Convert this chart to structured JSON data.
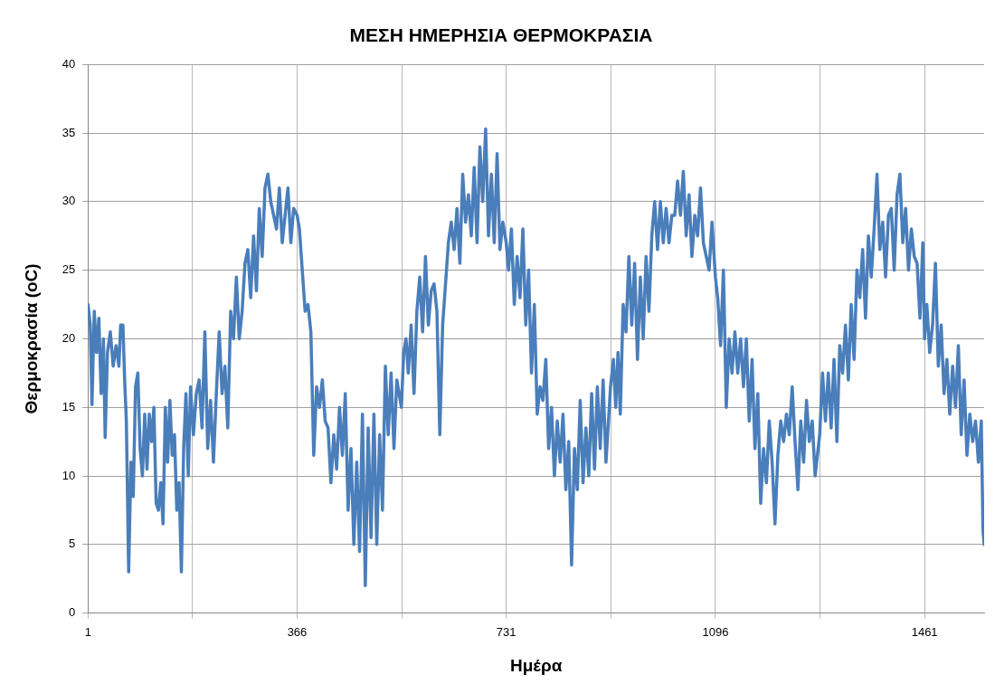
{
  "chart_data": {
    "type": "line",
    "title": "ΜΕΣΗ ΗΜΕΡΗΣΙΑ ΘΕΡΜΟΚΡΑΣΙΑ",
    "xlabel": "Ημέρα",
    "ylabel": "Θερμοκρασία (oC)",
    "xlim": [
      1,
      1565
    ],
    "ylim": [
      0,
      40
    ],
    "xticks": [
      1,
      {
        "value": 183.5,
        "label": null
      },
      366,
      {
        "value": 548.5,
        "label": null
      },
      731,
      {
        "value": 913.5,
        "label": null
      },
      1096,
      {
        "value": 1278.5,
        "label": null
      },
      1461
    ],
    "yticks": [
      0,
      5,
      10,
      15,
      20,
      25,
      30,
      35,
      40
    ],
    "grid": true,
    "legend": false,
    "marker": "none",
    "line_style": "solid",
    "series": [
      {
        "color": "#4a7ebb",
        "x": [
          1,
          5,
          8,
          12,
          16,
          20,
          24,
          28,
          31,
          35,
          40,
          45,
          50,
          55,
          58,
          62,
          65,
          68,
          72,
          76,
          80,
          84,
          88,
          92,
          96,
          100,
          104,
          108,
          112,
          116,
          120,
          124,
          128,
          132,
          136,
          140,
          144,
          148,
          152,
          156,
          160,
          164,
          168,
          172,
          176,
          180,
          185,
          190,
          195,
          200,
          205,
          210,
          215,
          220,
          225,
          230,
          235,
          240,
          245,
          250,
          255,
          260,
          265,
          270,
          275,
          280,
          285,
          290,
          295,
          300,
          305,
          310,
          315,
          320,
          325,
          330,
          335,
          340,
          345,
          350,
          355,
          360,
          366,
          370,
          375,
          380,
          385,
          390,
          395,
          400,
          405,
          410,
          415,
          420,
          425,
          430,
          435,
          440,
          445,
          450,
          455,
          460,
          465,
          470,
          475,
          480,
          485,
          490,
          495,
          500,
          505,
          510,
          515,
          520,
          525,
          530,
          535,
          540,
          548,
          552,
          556,
          560,
          565,
          570,
          575,
          580,
          585,
          590,
          595,
          600,
          605,
          610,
          615,
          620,
          625,
          630,
          635,
          640,
          645,
          650,
          655,
          660,
          665,
          670,
          675,
          680,
          685,
          690,
          695,
          700,
          705,
          710,
          715,
          720,
          725,
          731,
          735,
          740,
          745,
          750,
          755,
          760,
          765,
          770,
          775,
          780,
          785,
          790,
          795,
          800,
          805,
          810,
          815,
          820,
          825,
          830,
          835,
          840,
          845,
          850,
          855,
          860,
          865,
          870,
          875,
          880,
          885,
          890,
          895,
          900,
          905,
          913,
          918,
          922,
          926,
          930,
          935,
          940,
          945,
          950,
          955,
          960,
          965,
          970,
          975,
          980,
          985,
          990,
          995,
          1000,
          1005,
          1010,
          1015,
          1020,
          1025,
          1030,
          1035,
          1040,
          1045,
          1050,
          1055,
          1060,
          1065,
          1070,
          1075,
          1080,
          1085,
          1090,
          1096,
          1100,
          1105,
          1110,
          1115,
          1120,
          1125,
          1130,
          1135,
          1140,
          1145,
          1150,
          1155,
          1160,
          1165,
          1170,
          1175,
          1180,
          1185,
          1190,
          1195,
          1200,
          1205,
          1210,
          1215,
          1220,
          1225,
          1230,
          1235,
          1240,
          1245,
          1250,
          1255,
          1260,
          1265,
          1270,
          1278,
          1283,
          1288,
          1293,
          1298,
          1303,
          1308,
          1313,
          1318,
          1323,
          1328,
          1333,
          1338,
          1343,
          1348,
          1353,
          1358,
          1363,
          1368,
          1373,
          1378,
          1383,
          1388,
          1393,
          1398,
          1403,
          1408,
          1413,
          1418,
          1423,
          1428,
          1433,
          1438,
          1443,
          1448,
          1453,
          1458,
          1461,
          1465,
          1470,
          1475,
          1480,
          1485,
          1490,
          1495,
          1500,
          1505,
          1510,
          1515,
          1520,
          1525,
          1530,
          1535,
          1540,
          1545,
          1550,
          1555,
          1560,
          1563,
          1565
        ],
        "values": [
          22.5,
          21,
          15.2,
          22,
          19,
          21.5,
          16,
          20,
          12.8,
          19,
          20.5,
          18,
          19.5,
          18,
          21,
          21,
          17,
          14,
          3,
          11,
          8.5,
          16.5,
          17.5,
          12,
          10,
          14.5,
          10.5,
          14.5,
          12.5,
          15,
          8,
          7.5,
          9.5,
          6.5,
          15,
          11,
          15.5,
          11.5,
          13,
          7.5,
          9.5,
          3,
          12,
          16,
          10,
          16.5,
          13,
          16,
          17,
          13.5,
          20.5,
          12,
          15.5,
          11,
          16,
          20.5,
          16,
          18,
          13.5,
          22,
          20,
          24.5,
          20,
          22,
          25.5,
          26.5,
          23,
          27.5,
          23.5,
          29.5,
          26,
          31,
          32,
          30,
          29,
          28,
          31,
          27,
          29,
          31,
          27,
          29.5,
          29,
          28,
          25,
          22,
          22.5,
          20.5,
          11.5,
          16.5,
          15,
          17,
          14,
          13.5,
          9.5,
          13,
          10.5,
          15,
          11.5,
          16,
          7.5,
          12,
          5,
          11,
          4.5,
          14.5,
          2,
          13.5,
          5.5,
          14.5,
          5,
          13,
          7.5,
          18,
          13,
          17.5,
          12,
          17,
          15,
          19,
          20,
          17.5,
          21,
          16,
          22,
          24.5,
          20.5,
          26,
          21,
          23.5,
          24,
          22,
          13,
          21,
          24,
          27,
          28.5,
          26.5,
          29.5,
          25.5,
          32,
          28.5,
          30.5,
          27.5,
          32.5,
          27,
          34,
          30,
          35.3,
          27.5,
          32,
          27,
          33.5,
          26.5,
          28.5,
          27,
          25,
          28,
          22.5,
          26,
          23,
          28,
          21,
          25,
          17.5,
          22.5,
          14.5,
          16.5,
          15.5,
          18.5,
          12,
          15,
          10,
          14,
          11,
          14.5,
          9,
          12.5,
          3.5,
          12,
          9,
          15.5,
          9.5,
          13.5,
          10,
          16,
          10.5,
          16.5,
          12,
          17,
          11,
          16.5,
          18.5,
          15,
          19,
          14.5,
          22.5,
          20.5,
          26,
          21,
          25.5,
          18.5,
          24.5,
          20,
          26,
          22,
          27.5,
          30,
          26.5,
          30,
          27,
          29.5,
          27,
          29,
          29,
          31.5,
          29,
          32.2,
          27.5,
          30.5,
          26,
          29,
          27.5,
          31,
          27,
          26,
          25,
          28.5,
          24.5,
          23,
          19.5,
          25,
          15,
          20,
          17.5,
          20.5,
          17.5,
          20,
          16.5,
          20,
          14,
          18.5,
          12,
          16,
          8,
          12,
          9.5,
          14,
          11,
          6.5,
          11.5,
          14,
          12.5,
          14.5,
          13,
          16.5,
          12.5,
          9,
          14,
          11,
          15.5,
          12.5,
          14,
          10,
          13,
          17.5,
          14,
          17.5,
          13.5,
          18.5,
          12.5,
          19.5,
          17.5,
          21,
          17,
          22.5,
          18.5,
          25,
          23,
          26.5,
          21.5,
          27.5,
          24.5,
          28,
          32,
          26.5,
          28.5,
          24.5,
          29,
          29.5,
          25,
          30.5,
          32,
          27,
          29.5,
          25,
          28,
          26,
          25.5,
          21.5,
          27,
          20,
          22.5,
          19,
          21,
          25.5,
          18,
          21,
          16,
          18.5,
          14.5,
          18,
          15,
          19.5,
          13,
          17,
          11.5,
          14.5,
          12.5,
          14,
          11,
          14,
          6,
          5
        ]
      }
    ]
  }
}
